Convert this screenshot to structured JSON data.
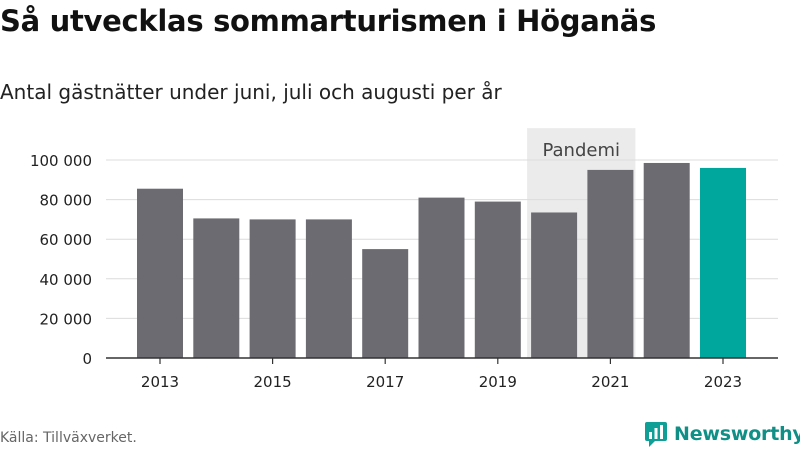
{
  "title": "Så utvecklas sommarturismen i Höganäs",
  "subtitle": "Antal gästnätter under juni, juli och augusti per år",
  "source": "Källa: Tillväxverket.",
  "brand": {
    "name": "Newsworthy",
    "color": "#0f9f96"
  },
  "colors": {
    "bar": "#6c6b71",
    "highlight": "#00a79d",
    "band": "#ebebeb",
    "grid": "#dcdcdc",
    "axis": "#333333"
  },
  "chart_data": {
    "type": "bar",
    "categories": [
      "2013",
      "2014",
      "2015",
      "2016",
      "2017",
      "2018",
      "2019",
      "2020",
      "2021",
      "2022",
      "2023"
    ],
    "values": [
      85500,
      70500,
      70000,
      70000,
      55000,
      81000,
      79000,
      73500,
      95000,
      98500,
      96000
    ],
    "highlight_category": "2023",
    "x_tick_labels": [
      "2013",
      "2015",
      "2017",
      "2019",
      "2021",
      "2023"
    ],
    "y_ticks": [
      0,
      20000,
      40000,
      60000,
      80000,
      100000
    ],
    "y_tick_labels": [
      "0",
      "20 000",
      "40 000",
      "60 000",
      "80 000",
      "100 000"
    ],
    "ylim": [
      0,
      107000
    ],
    "grid": true,
    "annotation": {
      "label": "Pandemi",
      "from": "2020",
      "to": "2021"
    },
    "xlabel": "",
    "ylabel": ""
  }
}
